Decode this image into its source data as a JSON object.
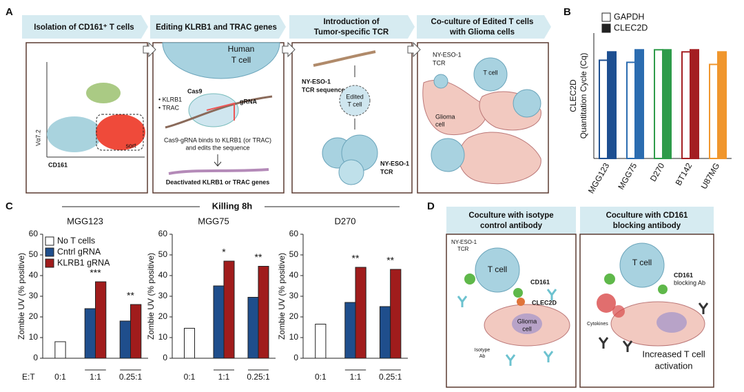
{
  "panel_labels": [
    "A",
    "B",
    "C",
    "D"
  ],
  "panel_a": {
    "steps": [
      [
        "Isolation of CD161⁺ T cells"
      ],
      [
        "Editing KLRB1 and TRAC genes"
      ],
      [
        "Introduction of",
        "Tumor-specific TCR"
      ],
      [
        "Co-culture of Edited T cells",
        "with Glioma cells"
      ]
    ],
    "flow": {
      "y_label": "Vα7.2",
      "x_label": "CD161",
      "gate": "sort"
    },
    "editing": {
      "cell": [
        "Human",
        "T cell"
      ],
      "genes": [
        "• KLRB1",
        "• TRAC"
      ],
      "cas9": "Cas9",
      "grna": "gRNA",
      "caption": [
        "Cas9-gRNA binds to KLRB1 (or TRAC)",
        "and edits the sequence"
      ],
      "result": "Deactivated KLRB1 or TRAC genes"
    },
    "tcr": {
      "sequence": [
        "NY-ESO-1",
        "TCR sequence"
      ],
      "edited": [
        "Edited",
        "T cell"
      ],
      "receptor": [
        "NY-ESO-1",
        "TCR"
      ]
    },
    "coculture": {
      "receptor": [
        "NY-ESO-1",
        "TCR"
      ],
      "t_cell": "T cell",
      "glioma": [
        "Glioma",
        "cell"
      ]
    }
  },
  "killing_title": "Killing 8h",
  "et_label": "E:T",
  "chart_data": [
    {
      "type": "bar",
      "ylabel": [
        "CLEC2D",
        "Quantitation Cycle (Cq)"
      ],
      "categories": [
        "MGG123",
        "MGG75",
        "D270",
        "BT142",
        "U87MG"
      ],
      "category_colors": [
        "#1d4f91",
        "#2b6cb0",
        "#2e9b4a",
        "#a41e22",
        "#f0962d"
      ],
      "series": [
        {
          "name": "GAPDH",
          "color": "#ffffff",
          "values": [
            23.5,
            23,
            26,
            25.5,
            22.5
          ]
        },
        {
          "name": "CLEC2D",
          "color": "#222222",
          "values": [
            25.5,
            26,
            26,
            26,
            25.5
          ]
        }
      ],
      "ylim": [
        0,
        30
      ],
      "legend": true
    },
    {
      "type": "bar",
      "title": "MGG123",
      "ylabel": [
        "Zombie UV (% positive)"
      ],
      "categories": [
        "0:1",
        "1:1",
        "0.25:1"
      ],
      "series": [
        {
          "name": "No T cells",
          "color": "#ffffff",
          "values": [
            8,
            null,
            null
          ]
        },
        {
          "name": "Cntrl gRNA",
          "color": "#1f4e8c",
          "values": [
            null,
            24,
            18
          ]
        },
        {
          "name": "KLRB1 gRNA",
          "color": "#a01c1c",
          "values": [
            null,
            37,
            26
          ]
        }
      ],
      "significance": [
        null,
        "***",
        "**"
      ],
      "ylim": [
        0,
        60
      ],
      "yticks": [
        0,
        10,
        20,
        30,
        40,
        50,
        60
      ],
      "legend": true
    },
    {
      "type": "bar",
      "title": "MGG75",
      "ylabel": [
        "Zombie UV (% positive)"
      ],
      "categories": [
        "0:1",
        "1:1",
        "0.25:1"
      ],
      "series": [
        {
          "name": "No T cells",
          "color": "#ffffff",
          "values": [
            14.5,
            null,
            null
          ]
        },
        {
          "name": "Cntrl gRNA",
          "color": "#1f4e8c",
          "values": [
            null,
            35,
            29.5
          ]
        },
        {
          "name": "KLRB1 gRNA",
          "color": "#a01c1c",
          "values": [
            null,
            47,
            44.5
          ]
        }
      ],
      "significance": [
        null,
        "*",
        "**"
      ],
      "ylim": [
        0,
        60
      ],
      "yticks": [
        0,
        10,
        20,
        30,
        40,
        50,
        60
      ],
      "legend": false
    },
    {
      "type": "bar",
      "title": "D270",
      "ylabel": [
        "Zombie UV (% positive)"
      ],
      "categories": [
        "0:1",
        "1:1",
        "0.25:1"
      ],
      "series": [
        {
          "name": "No T cells",
          "color": "#ffffff",
          "values": [
            16.5,
            null,
            null
          ]
        },
        {
          "name": "Cntrl gRNA",
          "color": "#1f4e8c",
          "values": [
            null,
            27,
            25
          ]
        },
        {
          "name": "KLRB1 gRNA",
          "color": "#a01c1c",
          "values": [
            null,
            44,
            43
          ]
        }
      ],
      "significance": [
        null,
        "**",
        "**"
      ],
      "ylim": [
        0,
        60
      ],
      "yticks": [
        0,
        10,
        20,
        30,
        40,
        50,
        60
      ],
      "legend": false
    }
  ],
  "panel_d": {
    "headers": [
      [
        "Coculture with isotype",
        "control antibody"
      ],
      [
        "Coculture with CD161",
        "blocking antibody"
      ]
    ],
    "isotype": {
      "receptor": [
        "NY-ESO-1",
        "TCR"
      ],
      "t_cell": "T cell",
      "cd161": "CD161",
      "clec2d": "CLEC2D",
      "glioma": [
        "Glioma",
        "cell"
      ],
      "antibody": [
        "Isotype",
        "Ab"
      ]
    },
    "blocking": {
      "t_cell": "T cell",
      "antibody": [
        "CD161",
        "blocking Ab"
      ],
      "cytokines": "Cytokines",
      "result": [
        "Increased T cell",
        "activation"
      ]
    }
  }
}
